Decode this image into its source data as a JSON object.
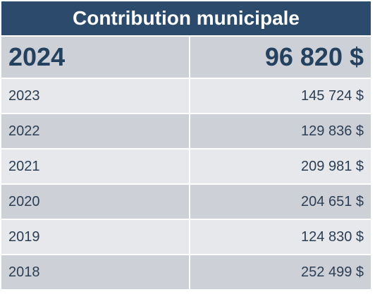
{
  "title": "Contribution municipale",
  "colors": {
    "header_bg": "#2c4a6b",
    "row_dark": "#cdd1d7",
    "row_light": "#e6e8eb",
    "text": "#2c3e54"
  },
  "rows": [
    {
      "year": "2024",
      "amount": "96 820 $"
    },
    {
      "year": "2023",
      "amount": "145 724 $"
    },
    {
      "year": "2022",
      "amount": "129 836 $"
    },
    {
      "year": "2021",
      "amount": "209 981 $"
    },
    {
      "year": "2020",
      "amount": "204 651 $"
    },
    {
      "year": "2019",
      "amount": "124 830 $"
    },
    {
      "year": "2018",
      "amount": "252 499 $"
    }
  ]
}
